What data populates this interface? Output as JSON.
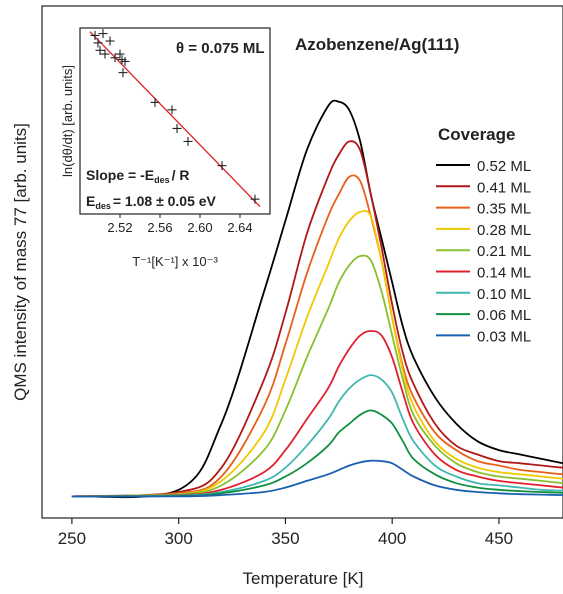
{
  "chart_data": [
    {
      "type": "line",
      "title": "Azobenzene/Ag(111)",
      "xlabel": "Temperature [K]",
      "ylabel": "QMS intensity of mass 77 [arb. units]",
      "xlim": [
        236,
        480
      ],
      "ylim": [
        0,
        100
      ],
      "x_ticks": [
        250,
        300,
        350,
        400,
        450
      ],
      "y_ticks_shown": false,
      "grid": false,
      "legend": {
        "title": "Coverage",
        "placement": "right"
      },
      "x": [
        250,
        300,
        320,
        340,
        350,
        360,
        370,
        375,
        380,
        385,
        390,
        395,
        400,
        405,
        410,
        420,
        430,
        440,
        450,
        460,
        470,
        480
      ],
      "series": [
        {
          "name": "0.52 ML",
          "color": "#000000",
          "values": [
            1.5,
            3,
            18,
            48,
            64,
            80,
            90,
            91,
            89,
            82,
            70,
            60,
            50,
            40,
            33,
            24,
            18,
            14,
            12,
            11,
            10,
            9
          ]
        },
        {
          "name": "0.41 ML",
          "color": "#b01818",
          "values": [
            1.5,
            2.5,
            8,
            28,
            43,
            61,
            74,
            79,
            82,
            80,
            70,
            58,
            45,
            34,
            27,
            18,
            13,
            11,
            9.5,
            9,
            8.5,
            8
          ]
        },
        {
          "name": "0.35 ML",
          "color": "#e8601a",
          "values": [
            1.5,
            2.2,
            6,
            22,
            36,
            52,
            65,
            70,
            74,
            73,
            65,
            55,
            42,
            31,
            24,
            16,
            12,
            9.5,
            8.5,
            7.5,
            7,
            6.5
          ]
        },
        {
          "name": "0.28 ML",
          "color": "#f0c800",
          "values": [
            1.5,
            2,
            5,
            16,
            28,
            42,
            54,
            60,
            64,
            66,
            65,
            55,
            42,
            30,
            22,
            14,
            10,
            8,
            7,
            6.5,
            6,
            5.5
          ]
        },
        {
          "name": "0.21 ML",
          "color": "#88c030",
          "values": [
            1.5,
            2,
            4,
            12,
            21,
            33,
            44,
            50,
            54,
            56,
            55,
            48,
            38,
            28,
            20,
            13,
            9,
            7,
            6,
            5.5,
            5,
            4.5
          ]
        },
        {
          "name": "0.14 ML",
          "color": "#e02030",
          "values": [
            1.5,
            1.8,
            3,
            7,
            12,
            19,
            26,
            31,
            35,
            38,
            39,
            38,
            33,
            25,
            18,
            11,
            7.5,
            6,
            5,
            4.5,
            4,
            3.5
          ]
        },
        {
          "name": "0.10 ML",
          "color": "#40b8b0",
          "values": [
            1.5,
            1.7,
            2.5,
            5,
            8,
            13,
            19,
            23,
            26,
            28,
            29,
            28,
            25,
            19,
            14,
            8.5,
            6,
            4.5,
            4,
            3.5,
            3,
            2.8
          ]
        },
        {
          "name": "0.06 ML",
          "color": "#109040",
          "values": [
            1.5,
            1.6,
            2.2,
            4,
            6,
            9,
            13,
            16,
            18,
            20,
            21,
            20,
            18,
            14,
            10,
            6.5,
            4.5,
            3.5,
            3,
            2.7,
            2.5,
            2.3
          ]
        },
        {
          "name": "0.03 ML",
          "color": "#1a60b0",
          "values": [
            1.5,
            1.5,
            1.8,
            2.5,
            3.5,
            5,
            6.5,
            7.5,
            8.5,
            9.2,
            9.6,
            9.5,
            9,
            7.5,
            6,
            4,
            3,
            2.5,
            2.2,
            2,
            1.9,
            1.8
          ]
        }
      ]
    },
    {
      "type": "scatter",
      "annotation_coverage": "θ = 0.075 ML",
      "xlabel": "T⁻¹[K⁻¹] x 10⁻³",
      "ylabel": "ln(dθ/dt) [arb. units]",
      "xlim": [
        2.48,
        2.67
      ],
      "ylim": [
        0,
        10
      ],
      "x_ticks": [
        "2.52",
        "2.56",
        "2.60",
        "2.64"
      ],
      "fit_line": {
        "color": "#e02020",
        "x": [
          2.49,
          2.66
        ],
        "y": [
          9.8,
          0.4
        ]
      },
      "annotation_slope": "Slope = -E",
      "annotation_slope_sub": "des",
      "annotation_slope_tail": "/ R",
      "annotation_energy_prefix": "E",
      "annotation_energy_sub": "des",
      "annotation_energy_value": "= 1.08 ± 0.05 eV",
      "points": [
        [
          2.495,
          9.6
        ],
        [
          2.498,
          9.2
        ],
        [
          2.5,
          8.8
        ],
        [
          2.503,
          9.7
        ],
        [
          2.505,
          8.6
        ],
        [
          2.51,
          9.3
        ],
        [
          2.515,
          8.4
        ],
        [
          2.52,
          8.6
        ],
        [
          2.522,
          8.3
        ],
        [
          2.523,
          7.6
        ],
        [
          2.525,
          8.2
        ],
        [
          2.555,
          6.0
        ],
        [
          2.572,
          5.6
        ],
        [
          2.577,
          4.6
        ],
        [
          2.588,
          3.9
        ],
        [
          2.622,
          2.6
        ],
        [
          2.655,
          0.8
        ]
      ]
    }
  ]
}
